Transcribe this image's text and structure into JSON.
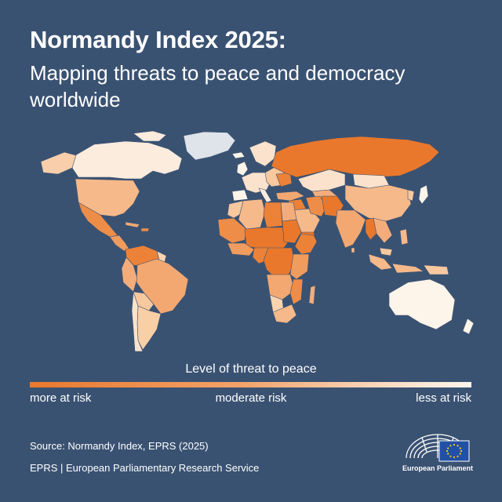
{
  "header": {
    "title": "Normandy Index 2025:",
    "subtitle": "Mapping threats to peace and democracy worldwide"
  },
  "legend": {
    "title": "Level of threat to peace",
    "left_label": "more at risk",
    "center_label": "moderate risk",
    "right_label": "less at risk"
  },
  "footer": {
    "source": "Source: Normandy Index, EPRS (2025)",
    "eprs": "EPRS | European Parliamentary Research Service",
    "logo_name": "European Parliament"
  },
  "colors": {
    "background": "#3a5272",
    "more_at_risk": "#e9782c",
    "moderate_risk": "#f2a36a",
    "less_at_risk": "#fdf4ea",
    "no_data": "#dfe3ea",
    "eu_flag_blue": "#2150a5",
    "eu_flag_star": "#ffd200"
  }
}
